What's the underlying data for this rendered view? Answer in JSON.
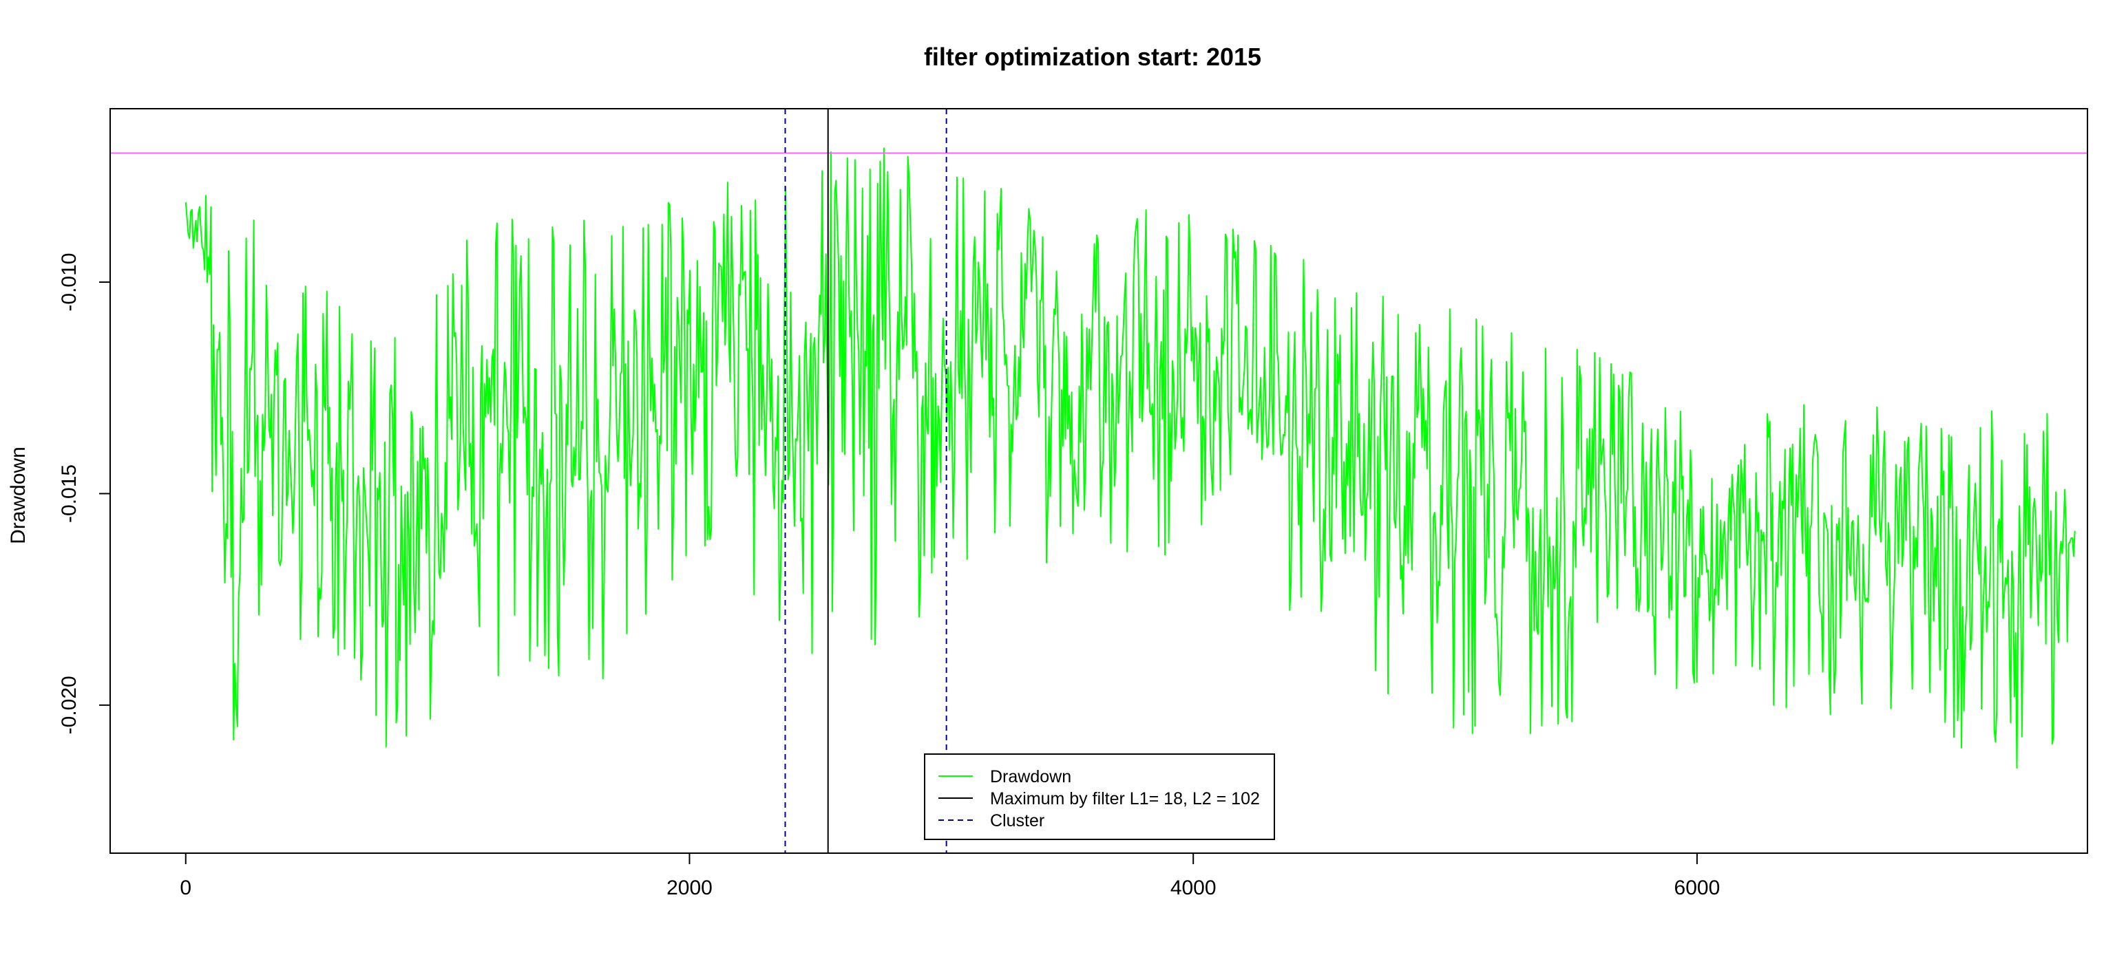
{
  "chart_data": {
    "type": "line",
    "title": "filter optimization start: 2015",
    "xlabel": "",
    "ylabel": "Drawdown",
    "xlim": [
      -300,
      7550
    ],
    "ylim": [
      -0.0235,
      -0.0059
    ],
    "xticks": [
      0,
      2000,
      4000,
      6000
    ],
    "xtick_labels": [
      "0",
      "2000",
      "4000",
      "6000"
    ],
    "yticks": [
      -0.01,
      -0.015,
      -0.02
    ],
    "ytick_labels": [
      "-0.010",
      "-0.015",
      "-0.020"
    ],
    "grid": false,
    "legend_position": "bottom-center",
    "colors": {
      "drawdown": "#00ff00",
      "maximum": "#000000",
      "cluster": "#00008b",
      "reference": "#ff66ff"
    },
    "legend": [
      {
        "label": "Drawdown",
        "style": "solid",
        "color": "#00ff00"
      },
      {
        "label": "Maximum by filter L1= 18, L2 = 102",
        "style": "solid",
        "color": "#000000"
      },
      {
        "label": "Cluster",
        "style": "dashed",
        "color": "#00008b"
      }
    ],
    "reference_line_y": -0.00695,
    "maximum_x": 2550,
    "cluster_x": [
      2380,
      3020
    ],
    "series": [
      {
        "name": "Drawdown",
        "x_start": 0,
        "x_end": 7500,
        "n_points": 1500,
        "envelope": [
          {
            "x": 0,
            "hi": -0.0078,
            "lo": -0.009
          },
          {
            "x": 80,
            "hi": -0.007,
            "lo": -0.012
          },
          {
            "x": 150,
            "hi": -0.0078,
            "lo": -0.0228
          },
          {
            "x": 400,
            "hi": -0.009,
            "lo": -0.0195
          },
          {
            "x": 700,
            "hi": -0.011,
            "lo": -0.02
          },
          {
            "x": 900,
            "hi": -0.01,
            "lo": -0.0222
          },
          {
            "x": 1200,
            "hi": -0.0085,
            "lo": -0.0195
          },
          {
            "x": 1700,
            "hi": -0.0085,
            "lo": -0.0195
          },
          {
            "x": 2100,
            "hi": -0.0077,
            "lo": -0.0162
          },
          {
            "x": 2400,
            "hi": -0.0072,
            "lo": -0.019
          },
          {
            "x": 2600,
            "hi": -0.0067,
            "lo": -0.0195
          },
          {
            "x": 3000,
            "hi": -0.007,
            "lo": -0.0175
          },
          {
            "x": 3500,
            "hi": -0.0085,
            "lo": -0.0165
          },
          {
            "x": 4100,
            "hi": -0.008,
            "lo": -0.0165
          },
          {
            "x": 4700,
            "hi": -0.01,
            "lo": -0.02
          },
          {
            "x": 5300,
            "hi": -0.011,
            "lo": -0.0212
          },
          {
            "x": 6000,
            "hi": -0.0125,
            "lo": -0.02
          },
          {
            "x": 6900,
            "hi": -0.013,
            "lo": -0.0205
          },
          {
            "x": 7400,
            "hi": -0.0128,
            "lo": -0.0223
          },
          {
            "x": 7500,
            "hi": -0.015,
            "lo": -0.017
          }
        ]
      }
    ]
  }
}
